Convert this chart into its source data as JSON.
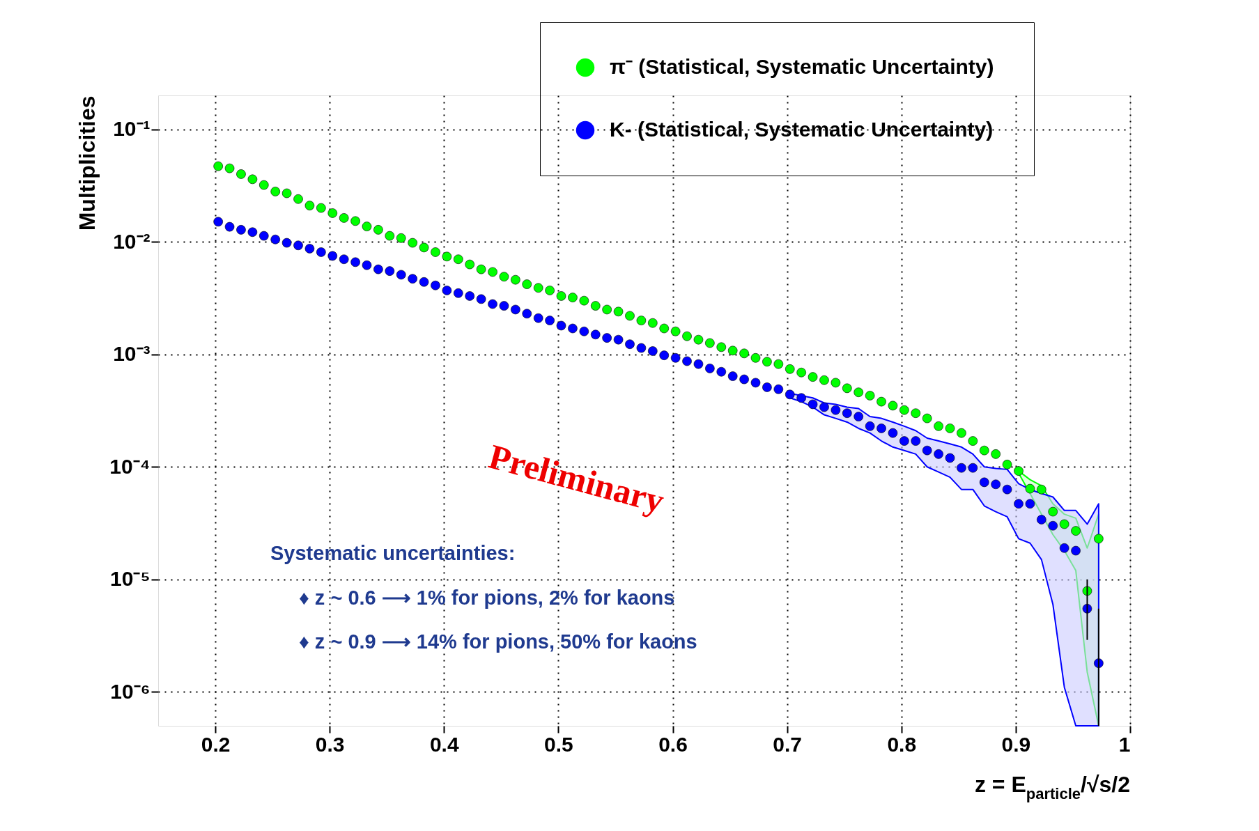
{
  "chart_data": {
    "type": "scatter",
    "xlabel": "z = E$_{particle}$/√s/2",
    "ylabel": "Multiplicities",
    "x": [
      0.2025,
      0.2125,
      0.2225,
      0.2325,
      0.2425,
      0.2525,
      0.2625,
      0.2725,
      0.2825,
      0.2925,
      0.3025,
      0.3125,
      0.3225,
      0.3325,
      0.3425,
      0.3525,
      0.3625,
      0.3725,
      0.3825,
      0.3925,
      0.4025,
      0.4125,
      0.4225,
      0.4325,
      0.4425,
      0.4525,
      0.4625,
      0.4725,
      0.4825,
      0.4925,
      0.5025,
      0.5125,
      0.5225,
      0.5325,
      0.5425,
      0.5525,
      0.5625,
      0.5725,
      0.5825,
      0.5925,
      0.6025,
      0.6125,
      0.6225,
      0.6325,
      0.6425,
      0.6525,
      0.6625,
      0.6725,
      0.6825,
      0.6925,
      0.7025,
      0.7125,
      0.7225,
      0.7325,
      0.7425,
      0.7525,
      0.7625,
      0.7725,
      0.7825,
      0.7925,
      0.8025,
      0.8125,
      0.8225,
      0.8325,
      0.8425,
      0.8525,
      0.8625,
      0.8725,
      0.8825,
      0.8925,
      0.9025,
      0.9125,
      0.9225,
      0.9325,
      0.9425,
      0.9525,
      0.9625,
      0.9725
    ],
    "series": [
      {
        "name": "π⁻ (Statistical, Systematic Uncertainty)",
        "color": "#00ff00",
        "values": [
          0.047,
          0.045,
          0.04,
          0.036,
          0.032,
          0.028,
          0.027,
          0.024,
          0.021,
          0.02,
          0.018,
          0.0163,
          0.0153,
          0.0137,
          0.0128,
          0.0113,
          0.0108,
          0.0098,
          0.0089,
          0.0081,
          0.0074,
          0.007,
          0.0063,
          0.0057,
          0.0054,
          0.0049,
          0.0046,
          0.0042,
          0.0039,
          0.0037,
          0.0033,
          0.0032,
          0.003,
          0.0027,
          0.0025,
          0.0024,
          0.0022,
          0.002,
          0.0019,
          0.0017,
          0.0016,
          0.00145,
          0.00135,
          0.00126,
          0.00116,
          0.00108,
          0.00102,
          0.00093,
          0.00086,
          0.00082,
          0.00074,
          0.00069,
          0.00063,
          0.00059,
          0.00056,
          0.0005,
          0.00046,
          0.00043,
          0.00038,
          0.00035,
          0.00032,
          0.0003,
          0.00027,
          0.00023,
          0.00022,
          0.0002,
          0.00017,
          0.00014,
          0.00013,
          0.000105,
          9.2e-05,
          6.4e-05,
          6.3e-05,
          4e-05,
          3.1e-05,
          2.7e-05,
          7.9e-06,
          2.3e-05
        ],
        "upper": [
          null,
          null,
          null,
          null,
          null,
          null,
          null,
          null,
          null,
          null,
          null,
          null,
          null,
          null,
          null,
          null,
          null,
          null,
          null,
          null,
          null,
          null,
          null,
          null,
          null,
          null,
          null,
          null,
          null,
          null,
          null,
          null,
          null,
          null,
          null,
          null,
          null,
          null,
          null,
          null,
          null,
          null,
          null,
          null,
          null,
          null,
          null,
          null,
          null,
          null,
          null,
          null,
          null,
          null,
          null,
          null,
          null,
          null,
          null,
          null,
          null,
          null,
          null,
          null,
          null,
          null,
          null,
          null,
          null,
          null,
          9.2e-05,
          7.7e-05,
          6.8e-05,
          4.7e-05,
          3.8e-05,
          3.5e-05,
          1.9e-05,
          3.8e-05
        ],
        "lower": [
          null,
          null,
          null,
          null,
          null,
          null,
          null,
          null,
          null,
          null,
          null,
          null,
          null,
          null,
          null,
          null,
          null,
          null,
          null,
          null,
          null,
          null,
          null,
          null,
          null,
          null,
          null,
          null,
          null,
          null,
          null,
          null,
          null,
          null,
          null,
          null,
          null,
          null,
          null,
          null,
          null,
          null,
          null,
          null,
          null,
          null,
          null,
          null,
          null,
          null,
          null,
          null,
          null,
          null,
          null,
          null,
          null,
          null,
          null,
          null,
          null,
          null,
          null,
          null,
          null,
          null,
          null,
          null,
          null,
          null,
          8.8e-05,
          5.8e-05,
          3.8e-05,
          2.5e-05,
          1.8e-05,
          1.2e-05,
          1.5e-06,
          5e-07
        ]
      },
      {
        "name": "K-  (Statistical, Systematic Uncertainty)",
        "color": "#0000ff",
        "values": [
          0.0151,
          0.0136,
          0.0128,
          0.0122,
          0.0113,
          0.0105,
          0.0098,
          0.0093,
          0.0087,
          0.0081,
          0.0075,
          0.007,
          0.0066,
          0.0062,
          0.0057,
          0.0055,
          0.0051,
          0.0047,
          0.0044,
          0.0041,
          0.0037,
          0.0035,
          0.0033,
          0.0031,
          0.0028,
          0.0027,
          0.0025,
          0.0023,
          0.0021,
          0.002,
          0.0018,
          0.0017,
          0.0016,
          0.0015,
          0.0014,
          0.00135,
          0.00123,
          0.00114,
          0.00107,
          0.00098,
          0.00093,
          0.00087,
          0.00082,
          0.00075,
          0.0007,
          0.00064,
          0.0006,
          0.00056,
          0.00051,
          0.00049,
          0.00044,
          0.00041,
          0.00036,
          0.00034,
          0.00032,
          0.0003,
          0.00028,
          0.00023,
          0.00022,
          0.0002,
          0.00017,
          0.00017,
          0.00014,
          0.00013,
          0.00012,
          9.8e-05,
          9.8e-05,
          7.3e-05,
          7e-05,
          6.3e-05,
          4.7e-05,
          4.7e-05,
          3.4e-05,
          3e-05,
          1.9e-05,
          1.8e-05,
          5.5e-06,
          1.8e-06
        ],
        "errors": [
          null,
          null,
          null,
          null,
          null,
          null,
          null,
          null,
          null,
          null,
          null,
          null,
          null,
          null,
          null,
          null,
          null,
          null,
          null,
          null,
          null,
          null,
          null,
          null,
          null,
          null,
          null,
          null,
          null,
          null,
          null,
          null,
          null,
          null,
          null,
          null,
          null,
          null,
          null,
          null,
          null,
          null,
          null,
          null,
          null,
          null,
          null,
          null,
          null,
          null,
          null,
          null,
          null,
          null,
          null,
          null,
          null,
          null,
          null,
          null,
          null,
          null,
          null,
          null,
          null,
          null,
          null,
          null,
          null,
          null,
          null,
          null,
          null,
          null,
          null,
          null,
          [
            2.9e-06,
            1e-05
          ],
          [
            5e-07,
            5.5e-06
          ]
        ],
        "upper": [
          null,
          null,
          null,
          null,
          null,
          null,
          null,
          null,
          null,
          null,
          null,
          null,
          null,
          null,
          null,
          null,
          null,
          null,
          null,
          null,
          null,
          null,
          null,
          null,
          null,
          null,
          null,
          null,
          null,
          null,
          null,
          null,
          null,
          null,
          null,
          null,
          null,
          null,
          null,
          null,
          null,
          null,
          null,
          null,
          null,
          null,
          null,
          null,
          null,
          null,
          0.00045,
          0.00043,
          0.00041,
          0.00037,
          0.00036,
          0.00034,
          0.00033,
          0.00028,
          0.00027,
          0.00025,
          0.00023,
          0.00021,
          0.00018,
          0.00017,
          0.00016,
          0.00015,
          0.00013,
          0.0001,
          9.7e-05,
          9.5e-05,
          7.1e-05,
          6.3e-05,
          5.8e-05,
          5.4e-05,
          4.1e-05,
          4.1e-05,
          3.1e-05,
          4.7e-05
        ],
        "lower": [
          null,
          null,
          null,
          null,
          null,
          null,
          null,
          null,
          null,
          null,
          null,
          null,
          null,
          null,
          null,
          null,
          null,
          null,
          null,
          null,
          null,
          null,
          null,
          null,
          null,
          null,
          null,
          null,
          null,
          null,
          null,
          null,
          null,
          null,
          null,
          null,
          null,
          null,
          null,
          null,
          null,
          null,
          null,
          null,
          null,
          null,
          null,
          null,
          null,
          null,
          0.00041,
          0.00038,
          0.00034,
          0.00029,
          0.00027,
          0.00025,
          0.00022,
          0.0002,
          0.00017,
          0.00015,
          0.00014,
          0.00013,
          0.0001,
          9e-05,
          8.1e-05,
          6.3e-05,
          6.3e-05,
          4.5e-05,
          4e-05,
          3.6e-05,
          2.3e-05,
          2.1e-05,
          1.5e-05,
          6e-06,
          1.1e-06,
          5e-07,
          5e-07,
          5e-07
        ]
      }
    ],
    "xlim": [
      0.15,
      1
    ],
    "xticks": [
      0.2,
      0.3,
      0.4,
      0.5,
      0.6,
      0.7,
      0.8,
      0.9,
      1
    ],
    "ylim": [
      5e-07,
      0.2
    ],
    "yticks": [
      {
        "value": 1e-06,
        "label": "10⁻⁶"
      },
      {
        "value": 1e-05,
        "label": "10⁻⁵"
      },
      {
        "value": 0.0001,
        "label": "10⁻⁴"
      },
      {
        "value": 0.001,
        "label": "10⁻³"
      },
      {
        "value": 0.01,
        "label": "10⁻²"
      },
      {
        "value": 0.1,
        "label": "10⁻¹"
      }
    ],
    "log": true,
    "grid": true,
    "legend": "top right",
    "marker": "circle",
    "annotations": [
      "Preliminary",
      "Systematic uncertainties:",
      "♦  z ~ 0.6 ⟶   1% for pions,   2% for kaons",
      "♦  z ~ 0.9 ⟶ 14% for pions, 50% for kaons"
    ]
  }
}
